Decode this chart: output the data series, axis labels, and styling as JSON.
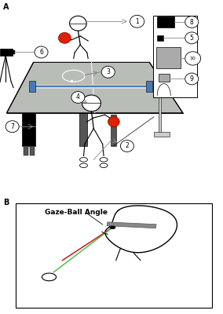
{
  "panel_a_label": "A",
  "panel_b_label": "B",
  "background_color": "#ffffff",
  "table_color": "#b8bdb8",
  "table_edge_color": "#888888",
  "net_color": "#4a7ab5",
  "ball_red": "#dd2200",
  "label_line_color": "#888888",
  "gaze_ball_angle_label": "Gaze-Ball Angle",
  "line_color_red": "#cc0000",
  "line_color_green": "#44bb44",
  "equipment_board_color": "#f0f0f0",
  "equipment_screen_color": "#aaaaaa",
  "dark_gray": "#555555",
  "light_gray": "#cccccc"
}
